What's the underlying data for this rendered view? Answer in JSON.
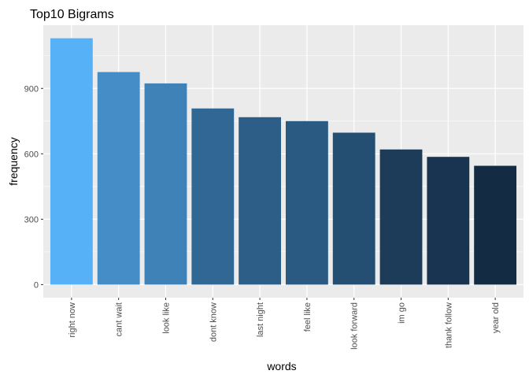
{
  "chart_data": {
    "type": "bar",
    "title": "Top10 Bigrams",
    "xlabel": "words",
    "ylabel": "frequency",
    "categories": [
      "right now",
      "cant wait",
      "look like",
      "dont know",
      "last night",
      "feel like",
      "look forward",
      "im go",
      "thank follow",
      "year old"
    ],
    "values": [
      1130,
      975,
      923,
      808,
      768,
      750,
      697,
      620,
      586,
      545
    ],
    "ylim": [
      -60,
      1190
    ],
    "yticks": [
      0,
      300,
      600,
      900
    ],
    "grid": true,
    "legend": "none",
    "color_scale": {
      "high": "#56B1F7",
      "low": "#132B43"
    }
  }
}
